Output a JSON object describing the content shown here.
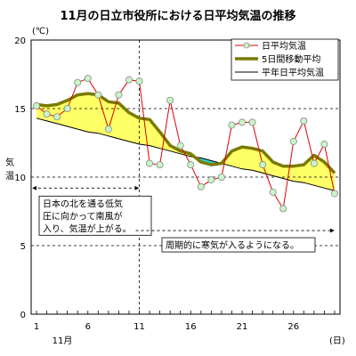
{
  "chart_data": {
    "type": "line",
    "title": "11月の日立市役所における日平均気温の推移",
    "unit_label": "(℃)",
    "ylabel": "気温",
    "xunit": "(日)",
    "month_label": "11月",
    "ylim": [
      0,
      20
    ],
    "yticks": [
      0,
      5,
      10,
      15,
      20
    ],
    "xlim": [
      1,
      30
    ],
    "xticks": [
      1,
      6,
      11,
      16,
      21,
      26
    ],
    "dashed_gridlines_y": [
      5,
      10,
      15
    ],
    "x": [
      1,
      2,
      3,
      4,
      5,
      6,
      7,
      8,
      9,
      10,
      11,
      12,
      13,
      14,
      15,
      16,
      17,
      18,
      19,
      20,
      21,
      22,
      23,
      24,
      25,
      26,
      27,
      28,
      29,
      30
    ],
    "series": [
      {
        "name": "日平均気温",
        "color": "#dd0000",
        "marker": "#c8f5c8",
        "values": [
          15.2,
          14.6,
          14.4,
          15.0,
          16.9,
          17.2,
          16.0,
          13.5,
          16.0,
          17.1,
          17.0,
          11.0,
          10.9,
          15.6,
          12.3,
          10.9,
          9.3,
          9.8,
          10.0,
          13.8,
          14.0,
          14.0,
          10.9,
          8.9,
          7.7,
          12.6,
          14.1,
          11.0,
          12.4,
          8.8
        ]
      },
      {
        "name": "5日間移動平均",
        "color": "#7a7a00",
        "values": [
          15.3,
          15.2,
          15.3,
          15.6,
          16.0,
          16.1,
          16.0,
          15.5,
          15.4,
          14.7,
          14.3,
          14.2,
          13.3,
          12.3,
          11.9,
          11.7,
          11.1,
          10.9,
          11.0,
          11.9,
          12.2,
          12.1,
          11.9,
          11.1,
          10.8,
          10.8,
          10.9,
          11.6,
          11.1,
          10.3
        ]
      },
      {
        "name": "平年日平均気温",
        "color": "#000000",
        "values": [
          14.3,
          14.1,
          13.9,
          13.7,
          13.5,
          13.3,
          13.2,
          13.0,
          12.8,
          12.6,
          12.4,
          12.3,
          12.1,
          11.9,
          11.7,
          11.5,
          11.4,
          11.2,
          11.0,
          10.8,
          10.6,
          10.5,
          10.3,
          10.1,
          9.9,
          9.7,
          9.6,
          9.4,
          9.2,
          9.0
        ]
      }
    ],
    "fill_above_color": "#ffff66",
    "fill_below_color": "#33cccc",
    "legend_position": "top-right",
    "annotations": [
      {
        "lines": [
          "日本の北を通る低気",
          "圧に向かって南風が",
          "入り、気温が上がる。"
        ],
        "arrow_from_day": 1,
        "arrow_to_day": 11,
        "level": 9.2
      },
      {
        "lines": [
          "周期的に寒気が入るようになる。"
        ],
        "arrow_from_day": 11,
        "arrow_to_day": 30,
        "level": 6.1
      }
    ],
    "divider_day": 11
  }
}
